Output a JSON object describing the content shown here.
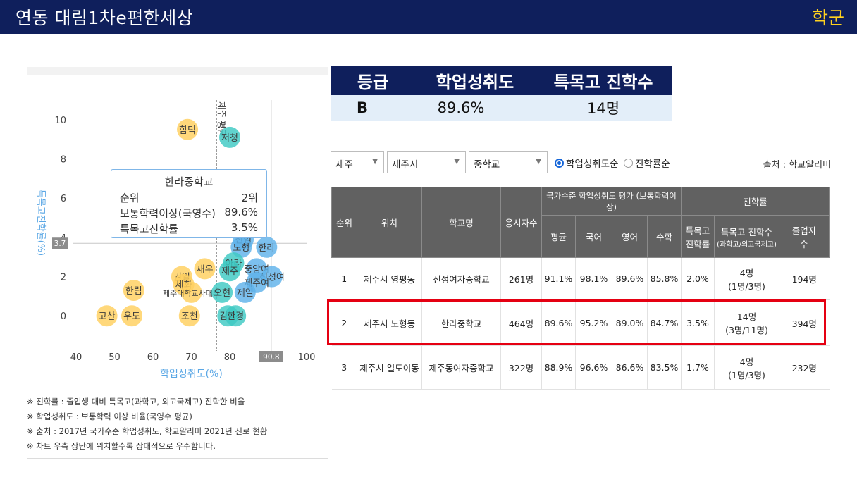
{
  "header": {
    "title": "연동 대림1차e편한세상",
    "badge": "학군"
  },
  "grade": {
    "headers": [
      "등급",
      "학업성취도",
      "특목고 진학수"
    ],
    "values": [
      "B",
      "89.6%",
      "14명"
    ]
  },
  "filters": {
    "province": "제주",
    "city": "제주시",
    "level": "중학교",
    "radio1": "학업성취도순",
    "radio2": "진학률순",
    "source": "출처 : 학교알리미"
  },
  "tooltip": {
    "name": "한라중학교",
    "rows": [
      {
        "label": "순위",
        "value": "2위"
      },
      {
        "label": "보통학력이상(국영수)",
        "value": "89.6%"
      },
      {
        "label": "특목고진학률",
        "value": "3.5%"
      }
    ]
  },
  "chart_data": {
    "type": "scatter",
    "xlabel": "학업성취도(%)",
    "ylabel": "특목고진학률(%)",
    "xlim": [
      40,
      100
    ],
    "ylim": [
      -1.5,
      11
    ],
    "xticks": [
      40,
      50,
      60,
      70,
      80,
      90,
      100
    ],
    "yticks": [
      0,
      2,
      4,
      6,
      8,
      10
    ],
    "grid": false,
    "legend": "none",
    "reference": {
      "x": 90.8,
      "x_label": "90.8",
      "y": 3.7,
      "y_label": "3.7",
      "mean_x": 76.5,
      "mean_x_label": "제주 평균"
    },
    "points": [
      {
        "label": "함덕",
        "x": 69,
        "y": 9.5,
        "group": "읍면"
      },
      {
        "label": "저청",
        "x": 80,
        "y": 9.1,
        "group": "시내"
      },
      {
        "label": "신엄",
        "x": 83.5,
        "y": 3.9,
        "group": "시내"
      },
      {
        "label": "노형",
        "x": 83,
        "y": 3.5,
        "group": "시내"
      },
      {
        "label": "한라",
        "x": 89.6,
        "y": 3.5,
        "group": "시내"
      },
      {
        "label": "아라",
        "x": 81,
        "y": 2.7,
        "group": "시내"
      },
      {
        "label": "중앙여",
        "x": 87,
        "y": 2.4,
        "group": "시내"
      },
      {
        "label": "제주",
        "x": 80,
        "y": 2.3,
        "group": "시내"
      },
      {
        "label": "신성여",
        "x": 91,
        "y": 2.0,
        "group": "시내"
      },
      {
        "label": "제주여",
        "x": 87,
        "y": 1.7,
        "group": "시내"
      },
      {
        "label": "재우",
        "x": 73.5,
        "y": 2.4,
        "group": "읍면"
      },
      {
        "label": "권일",
        "x": 67.5,
        "y": 2.0,
        "group": "읍면"
      },
      {
        "label": "세화",
        "x": 68,
        "y": 1.6,
        "group": "읍면"
      },
      {
        "label": "한림",
        "x": 55,
        "y": 1.3,
        "group": "읍면"
      },
      {
        "label": "제주대학교사대부",
        "x": 70,
        "y": 1.2,
        "group": "읍면"
      },
      {
        "label": "오현",
        "x": 78,
        "y": 1.2,
        "group": "시내"
      },
      {
        "label": "제일",
        "x": 84,
        "y": 1.2,
        "group": "시내"
      },
      {
        "label": "고산",
        "x": 48,
        "y": 0,
        "group": "읍면"
      },
      {
        "label": "우도",
        "x": 54.5,
        "y": 0,
        "group": "읍면"
      },
      {
        "label": "조천",
        "x": 69.5,
        "y": 0,
        "group": "읍면"
      },
      {
        "label": "김녕",
        "x": 79.5,
        "y": 0,
        "group": "시내"
      },
      {
        "label": "한경",
        "x": 81.5,
        "y": 0,
        "group": "시내"
      }
    ]
  },
  "table": {
    "headers": {
      "rank": "순위",
      "location": "위치",
      "school": "학교명",
      "examinees": "응시자수",
      "national": "국가수준 학업성취도 평가 (보통학력이상)",
      "advance": "진학률",
      "avg": "평균",
      "kor": "국어",
      "eng": "영어",
      "math": "수학",
      "rate": "특목고 진학률",
      "count": "특목고 진학수",
      "count_sub": "(과학고/외고국제고)",
      "grads": "졸업자 수"
    },
    "rows": [
      {
        "rank": "1",
        "location": "제주시 영평동",
        "school": "신성여자중학교",
        "examinees": "261명",
        "avg": "91.1%",
        "kor": "98.1%",
        "eng": "89.6%",
        "math": "85.8%",
        "rate": "2.0%",
        "count": "4명",
        "count_sub": "(1명/3명)",
        "grads": "194명"
      },
      {
        "rank": "2",
        "location": "제주시 노형동",
        "school": "한라중학교",
        "examinees": "464명",
        "avg": "89.6%",
        "kor": "95.2%",
        "eng": "89.0%",
        "math": "84.7%",
        "rate": "3.5%",
        "count": "14명",
        "count_sub": "(3명/11명)",
        "grads": "394명"
      },
      {
        "rank": "3",
        "location": "제주시 일도이동",
        "school": "제주동여자중학교",
        "examinees": "322명",
        "avg": "88.9%",
        "kor": "96.6%",
        "eng": "86.6%",
        "math": "83.5%",
        "rate": "1.7%",
        "count": "4명",
        "count_sub": "(1명/3명)",
        "grads": "232명"
      }
    ]
  },
  "notes": [
    "※ 진학률 : 졸업생 대비 특목고(과학고, 외고국제고) 진학한 비율",
    "※ 학업성취도 : 보통학력 이상 비율(국영수 평균)",
    "※ 출처 : 2017년 국가수준 학업성취도, 학교알리미 2021년 진로 현황",
    "※ 차트 우측 상단에 위치할수록 상대적으로 우수합니다."
  ],
  "colors": {
    "navy": "#0f1f5c",
    "yellow": "#ffd21f",
    "teal": "#3ec9c3",
    "blue": "#5fb2ea",
    "orange": "#ffcf5e",
    "highlight": "#e50012"
  }
}
